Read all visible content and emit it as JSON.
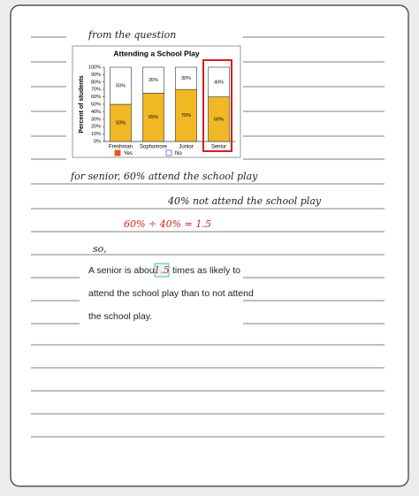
{
  "header": {
    "note": "from the question"
  },
  "chart_data": {
    "type": "stacked_bar",
    "title": "Attending a School Play",
    "y_label": "Percent of students",
    "categories": [
      "Freshman",
      "Sophomore",
      "Junior",
      "Senior"
    ],
    "series": [
      {
        "name": "Yes",
        "color": "#f2b824",
        "values": [
          50,
          65,
          70,
          60
        ],
        "value_labels": [
          "50%",
          "65%",
          "70%",
          "60%"
        ]
      },
      {
        "name": "No",
        "color": "#ffffff",
        "values": [
          50,
          35,
          30,
          40
        ],
        "value_labels": [
          "50%",
          "35%",
          "30%",
          "40%"
        ]
      }
    ],
    "ylim": [
      0,
      100
    ],
    "yticks": [
      {
        "value": 0,
        "label": "0%"
      },
      {
        "value": 10,
        "label": "10%"
      },
      {
        "value": 20,
        "label": "20%"
      },
      {
        "value": 30,
        "label": "30%"
      },
      {
        "value": 40,
        "label": "40%"
      },
      {
        "value": 50,
        "label": "50%"
      },
      {
        "value": 60,
        "label": "60%"
      },
      {
        "value": 70,
        "label": "70%"
      },
      {
        "value": 80,
        "label": "80%"
      },
      {
        "value": 90,
        "label": "90%"
      },
      {
        "value": 100,
        "label": "100%"
      }
    ],
    "legend": "bottom"
  },
  "work": {
    "line1": "for senior, 60% attend the school play",
    "line2": "40% not attend the school play",
    "calc": "60% ÷ 40% = 1.5",
    "so": "so,"
  },
  "answer": {
    "part1": "A senior is about",
    "blank": "1.5",
    "part2": "times as likely to",
    "line2": "attend the school play than to not attend",
    "line3": "the school play."
  }
}
